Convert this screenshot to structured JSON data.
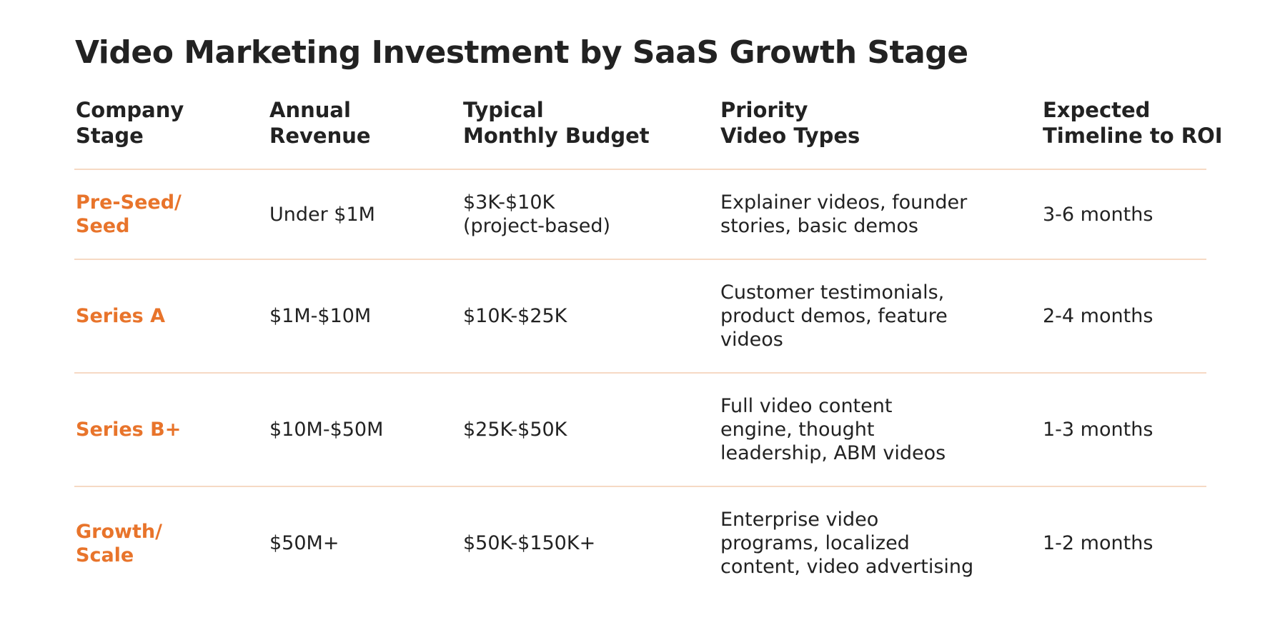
{
  "title": "Video Marketing Investment by SaaS Growth Stage",
  "columns": [
    [
      "Company",
      "Stage"
    ],
    [
      "Annual",
      "Revenue"
    ],
    [
      "Typical",
      "Monthly Budget"
    ],
    [
      "Priority",
      "Video Types"
    ],
    [
      "Expected",
      "Timeline to ROI"
    ]
  ],
  "rows": [
    {
      "stage": [
        "Pre-Seed/",
        "Seed"
      ],
      "revenue": [
        "Under $1M"
      ],
      "budget": [
        "$3K-$10K",
        "(project-based)"
      ],
      "video_types": [
        "Explainer videos, founder",
        "stories, basic demos"
      ],
      "timeline": [
        "3-6 months"
      ]
    },
    {
      "stage": [
        "Series A"
      ],
      "revenue": [
        "$1M-$10M"
      ],
      "budget": [
        "$10K-$25K"
      ],
      "video_types": [
        "Customer testimonials,",
        "product demos, feature",
        "videos"
      ],
      "timeline": [
        "2-4 months"
      ]
    },
    {
      "stage": [
        "Series B+"
      ],
      "revenue": [
        "$10M-$50M"
      ],
      "budget": [
        "$25K-$50K"
      ],
      "video_types": [
        "Full video content",
        "engine, thought",
        "leadership, ABM videos"
      ],
      "timeline": [
        "1-3 months"
      ]
    },
    {
      "stage": [
        "Growth/",
        "Scale"
      ],
      "revenue": [
        "$50M+"
      ],
      "budget": [
        "$50K-$150K+"
      ],
      "video_types": [
        "Enterprise video",
        "programs, localized",
        "content, video advertising"
      ],
      "timeline": [
        "1-2 months"
      ]
    }
  ],
  "colors": {
    "stage_accent": "#e8742b",
    "divider": "#f6d9c4",
    "text": "#222222"
  }
}
